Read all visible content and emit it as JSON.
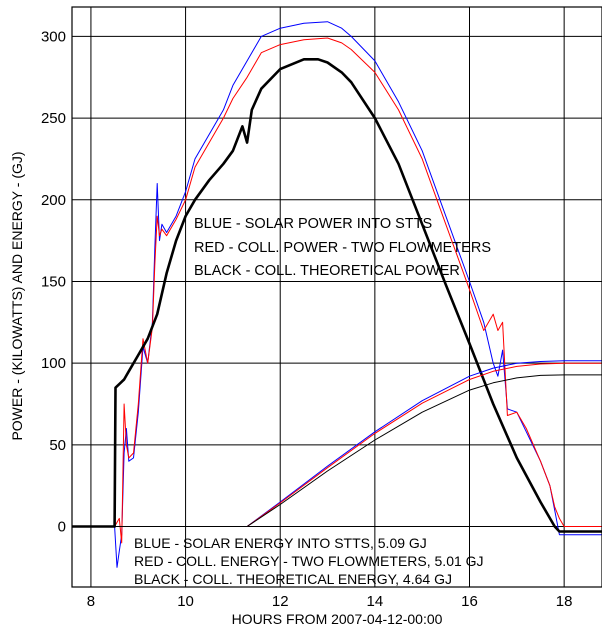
{
  "chart_data": {
    "type": "line",
    "xlabel": "HOURS FROM 2007-04-12-00:00",
    "ylabel": "POWER - (KILOWATTS) AND ENERGY - (GJ)",
    "xlim": [
      7.6,
      18.8
    ],
    "ylim": [
      -37,
      318
    ],
    "x_ticks": [
      8,
      10,
      12,
      14,
      16,
      18
    ],
    "y_ticks": [
      0,
      50,
      100,
      150,
      200,
      250,
      300
    ],
    "grid": true,
    "legend_placement": "inside, center",
    "annotations_power": [
      "BLUE - SOLAR POWER INTO STTS",
      "RED - COLL. POWER - TWO FLOWMETERS",
      "BLACK - COLL. THEORETICAL POWER"
    ],
    "annotations_energy": [
      "BLUE - SOLAR ENERGY INTO STTS, 5.09 GJ",
      "RED - COLL. ENERGY - TWO FLOWMETERS, 5.01 GJ",
      "BLACK - COLL. THEORETICAL ENERGY, 4.64 GJ"
    ],
    "series": [
      {
        "color": "#0000ff",
        "width": 1,
        "x": [
          7.6,
          8.5,
          8.55,
          8.6,
          8.65,
          8.7,
          8.75,
          8.8,
          8.9,
          9.0,
          9.1,
          9.2,
          9.3,
          9.35,
          9.4,
          9.45,
          9.5,
          9.6,
          9.8,
          10.0,
          10.2,
          10.5,
          10.8,
          11.0,
          11.3,
          11.6,
          12.0,
          12.5,
          13.0,
          13.3,
          13.5,
          14.0,
          14.5,
          15.0,
          15.5,
          16.0,
          16.3,
          16.5,
          16.6,
          16.7,
          16.8,
          17.0,
          17.2,
          17.5,
          17.7,
          17.8,
          17.9,
          18.0,
          18.8
        ],
        "y": [
          0,
          0,
          -25,
          -15,
          -5,
          45,
          60,
          40,
          42,
          70,
          110,
          100,
          125,
          170,
          210,
          175,
          185,
          180,
          190,
          205,
          225,
          240,
          255,
          270,
          285,
          300,
          305,
          308,
          309,
          305,
          300,
          285,
          260,
          230,
          190,
          150,
          125,
          100,
          92,
          108,
          72,
          70,
          58,
          40,
          25,
          10,
          -5,
          -5,
          -5
        ]
      },
      {
        "color": "#ff0000",
        "width": 1,
        "x": [
          7.6,
          8.5,
          8.6,
          8.65,
          8.7,
          8.75,
          8.8,
          8.9,
          9.0,
          9.1,
          9.2,
          9.3,
          9.35,
          9.4,
          9.45,
          9.5,
          9.6,
          9.8,
          10.0,
          10.2,
          10.5,
          10.8,
          11.0,
          11.3,
          11.6,
          12.0,
          12.5,
          13.0,
          13.3,
          13.5,
          14.0,
          14.5,
          15.0,
          15.5,
          16.0,
          16.3,
          16.5,
          16.6,
          16.7,
          16.8,
          17.0,
          17.2,
          17.5,
          17.7,
          17.8,
          17.9,
          18.0,
          18.8
        ],
        "y": [
          0,
          0,
          5,
          -10,
          75,
          50,
          42,
          45,
          75,
          115,
          100,
          122,
          160,
          190,
          178,
          182,
          178,
          188,
          200,
          220,
          235,
          250,
          262,
          275,
          290,
          295,
          298,
          299,
          296,
          292,
          278,
          255,
          225,
          185,
          145,
          120,
          130,
          120,
          125,
          68,
          70,
          60,
          40,
          25,
          12,
          5,
          0,
          0
        ]
      },
      {
        "color": "#000000",
        "width": 2.6,
        "x": [
          7.6,
          8.5,
          8.52,
          8.7,
          8.8,
          9.0,
          9.2,
          9.4,
          9.6,
          9.8,
          10.0,
          10.2,
          10.5,
          10.8,
          11.0,
          11.2,
          11.3,
          11.4,
          11.6,
          12.0,
          12.5,
          12.8,
          13.0,
          13.3,
          13.5,
          14.0,
          14.5,
          15.0,
          15.5,
          16.0,
          16.5,
          17.0,
          17.5,
          17.8,
          17.9,
          18.8
        ],
        "y": [
          0,
          0,
          85,
          90,
          95,
          105,
          115,
          130,
          155,
          175,
          190,
          200,
          212,
          222,
          230,
          245,
          235,
          255,
          268,
          280,
          286,
          286,
          284,
          278,
          272,
          250,
          222,
          185,
          148,
          112,
          75,
          42,
          15,
          0,
          -3,
          -3
        ]
      },
      {
        "color": "#0000ff",
        "width": 1,
        "x": [
          7.6,
          11.3,
          12.0,
          13.0,
          14.0,
          15.0,
          16.0,
          16.5,
          17.0,
          17.5,
          18.0,
          18.8
        ],
        "y": [
          0,
          0,
          15,
          37,
          58,
          77,
          92,
          97,
          100,
          101,
          101.5,
          101.5
        ]
      },
      {
        "color": "#ff0000",
        "width": 1,
        "x": [
          7.6,
          11.3,
          12.0,
          13.0,
          14.0,
          15.0,
          16.0,
          16.5,
          17.0,
          17.5,
          18.0,
          18.8
        ],
        "y": [
          0,
          0,
          14.5,
          36,
          57,
          75.5,
          90,
          95,
          98,
          99.5,
          100,
          100
        ]
      },
      {
        "color": "#000000",
        "width": 1,
        "x": [
          7.6,
          11.3,
          12.0,
          13.0,
          14.0,
          15.0,
          16.0,
          16.5,
          17.0,
          17.5,
          18.0,
          18.8
        ],
        "y": [
          0,
          0,
          13.5,
          34,
          53,
          70,
          83.5,
          88,
          91,
          92.5,
          92.8,
          92.8
        ]
      }
    ]
  }
}
